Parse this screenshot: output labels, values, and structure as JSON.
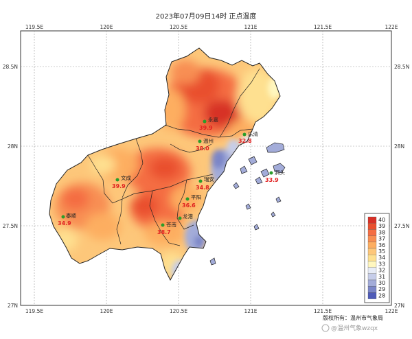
{
  "title": "2023年07月09日14时 正点温度",
  "axes": {
    "lon_labels": [
      "119.5E",
      "120E",
      "120.5E",
      "121E",
      "121.5E",
      "122E"
    ],
    "lat_labels": [
      "28.5N",
      "28N",
      "27.5N",
      "27N"
    ]
  },
  "stations": [
    {
      "name": "永嘉",
      "temp": "39.9"
    },
    {
      "name": "温州",
      "temp": "38.0"
    },
    {
      "name": "乐清",
      "temp": "32.8"
    },
    {
      "name": "洞头",
      "temp": "33.9"
    },
    {
      "name": "文成",
      "temp": "39.9"
    },
    {
      "name": "瑞安",
      "temp": "34.8"
    },
    {
      "name": "泰顺",
      "temp": "34.9"
    },
    {
      "name": "平阳",
      "temp": "36.6"
    },
    {
      "name": "苍南",
      "temp": "38.7"
    },
    {
      "name": "龙港",
      "temp": ""
    }
  ],
  "legend": {
    "ticks": [
      "40",
      "39",
      "38",
      "37",
      "36",
      "35",
      "34",
      "33",
      "32",
      "31",
      "30",
      "29",
      "28"
    ],
    "colors": [
      "#d73027",
      "#e9502f",
      "#f46d43",
      "#f88e52",
      "#fdae61",
      "#fdc77a",
      "#fee090",
      "#fff7bf",
      "#e7ecf7",
      "#c6cde9",
      "#a3acd9",
      "#7b86c8",
      "#4e5bb8"
    ]
  },
  "footer": {
    "copyright": "版权所有：温州市气象局",
    "watermark": "@温州气象wzqx"
  }
}
